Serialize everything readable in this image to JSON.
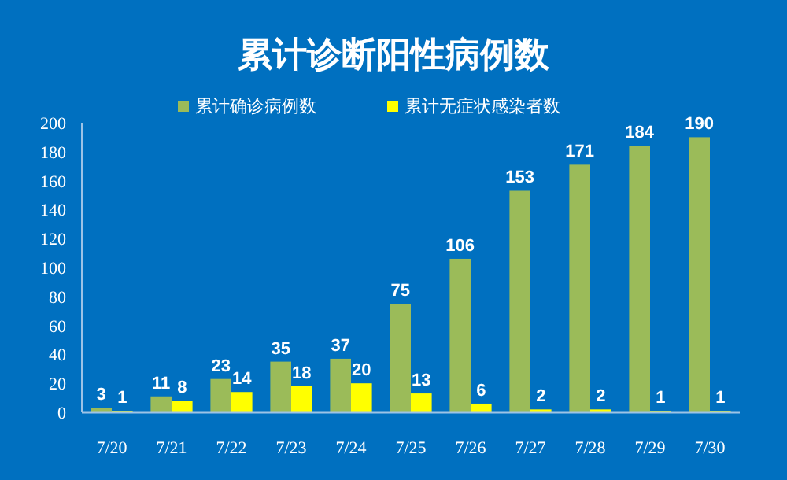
{
  "chart_data": {
    "type": "bar",
    "title": "累计诊断阳性病例数",
    "categories": [
      "7/20",
      "7/21",
      "7/22",
      "7/23",
      "7/24",
      "7/25",
      "7/26",
      "7/27",
      "7/28",
      "7/29",
      "7/30"
    ],
    "series": [
      {
        "name": "累计确诊病例数",
        "color": "#9bbb59",
        "values": [
          3,
          11,
          23,
          35,
          37,
          75,
          106,
          153,
          171,
          184,
          190
        ]
      },
      {
        "name": "累计无症状感染者数",
        "color": "#ffff00",
        "values": [
          1,
          8,
          14,
          18,
          20,
          13,
          6,
          2,
          2,
          1,
          1
        ]
      }
    ],
    "ylim": [
      0,
      200
    ],
    "yticks": [
      0,
      20,
      40,
      60,
      80,
      100,
      120,
      140,
      160,
      180,
      200
    ],
    "grid": false,
    "legend": "top",
    "data_labels": true
  }
}
